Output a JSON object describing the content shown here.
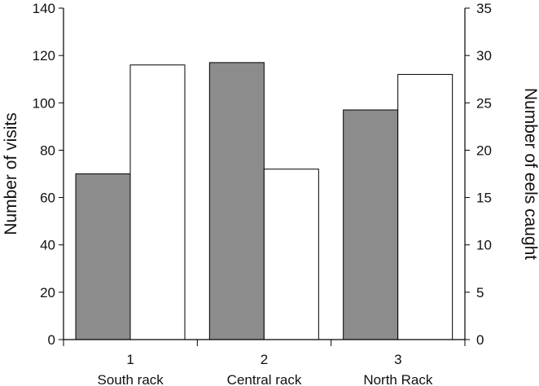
{
  "chart_data": {
    "type": "bar",
    "categories": [
      "1",
      "2",
      "3"
    ],
    "category_labels": [
      "South rack",
      "Central rack",
      "North Rack"
    ],
    "series": [
      {
        "axis": "left",
        "color": "#8c8c8c",
        "values": [
          70,
          117,
          97
        ]
      },
      {
        "axis": "right",
        "color": "#ffffff",
        "values": [
          29,
          18,
          28
        ]
      }
    ],
    "ylabel_left": "Number of visits",
    "ylabel_right": "Number of eels caught",
    "ylim_left": [
      0,
      140
    ],
    "yticks_left": [
      0,
      20,
      40,
      60,
      80,
      100,
      120,
      140
    ],
    "ylim_right": [
      0,
      35
    ],
    "yticks_right": [
      0,
      5,
      10,
      15,
      20,
      25,
      30,
      35
    ],
    "grid": false,
    "legend": "none"
  }
}
